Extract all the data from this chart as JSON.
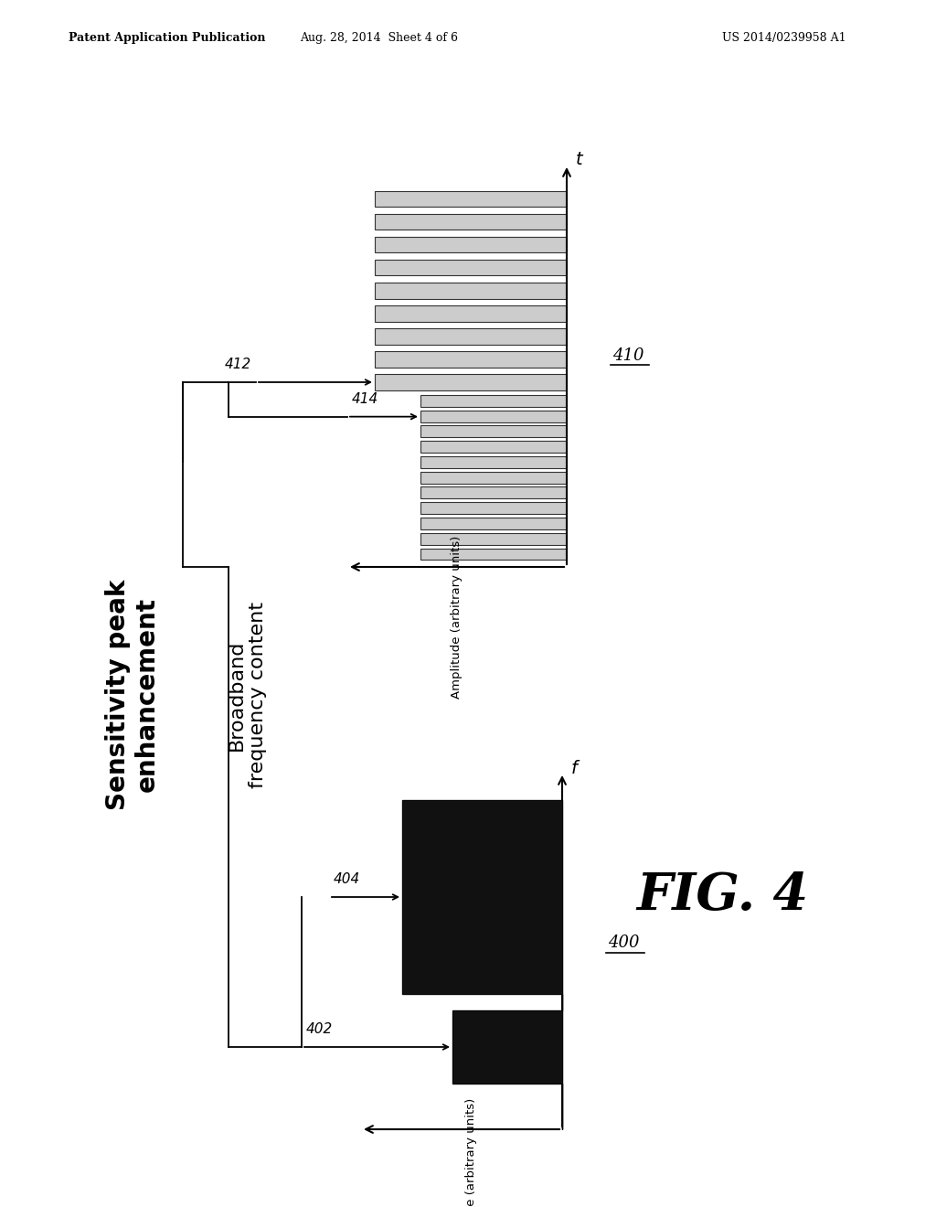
{
  "bg_color": "#ffffff",
  "header_left": "Patent Application Publication",
  "header_center": "Aug. 28, 2014  Sheet 4 of 6",
  "header_right": "US 2014/0239958 A1",
  "fig_label": "FIG. 4",
  "diagram400_label": "400",
  "diagram410_label": "410",
  "label_402": "402",
  "label_404": "404",
  "label_412": "412",
  "label_414": "414",
  "axis_f_label": "f",
  "axis_t_label": "t",
  "axis_amp_label": "Amplitude (arbitrary units)",
  "sensitivity_text": "Sensitivity peak\nenhancement",
  "broadband_text": "Broadband\nfrequency content",
  "line_color": "#000000",
  "bar_fill_color": "#cccccc",
  "bar_edge_color": "#333333",
  "spectrum_fill_color": "#111111"
}
